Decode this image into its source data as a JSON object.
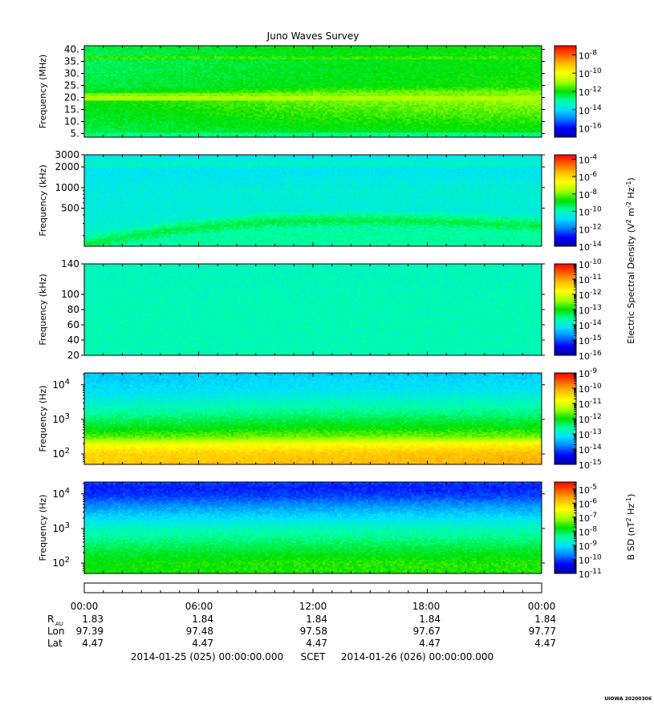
{
  "title": "Juno Waves Survey",
  "footer_tag": "UIOWA 20200306",
  "colorscale": [
    "#0000a0",
    "#0000ff",
    "#0080ff",
    "#00e0ff",
    "#00ffa0",
    "#00e000",
    "#a0ff00",
    "#ffff00",
    "#ffc000",
    "#ff6000",
    "#ff0000"
  ],
  "chart_data": [
    {
      "type": "heatmap",
      "name": "panel-hfr-high",
      "ylabel": "Frequency (MHz)",
      "yscale": "linear",
      "ylim": [
        3.5,
        41.5
      ],
      "yticks": [
        {
          "v": 40,
          "l": "40."
        },
        {
          "v": 35,
          "l": "35."
        },
        {
          "v": 30,
          "l": "30."
        },
        {
          "v": 25,
          "l": "25."
        },
        {
          "v": 20,
          "l": "20."
        },
        {
          "v": 15,
          "l": "15."
        },
        {
          "v": 10,
          "l": "10."
        },
        {
          "v": 5,
          "l": "5."
        }
      ],
      "cbar": {
        "exp_min": -17,
        "exp_max": -7,
        "ticks": [
          -8,
          -10,
          -12,
          -14,
          -16
        ],
        "unit_label": "",
        "minor": false
      },
      "rows": [
        {
          "f": 0.0,
          "c": [
            0.46,
            0.48,
            0.5
          ]
        },
        {
          "f": 0.1,
          "c": [
            0.46,
            0.49,
            0.5
          ]
        },
        {
          "f": 0.45,
          "c": [
            0.5,
            0.58,
            0.62
          ]
        },
        {
          "f": 0.5,
          "c": [
            0.48,
            0.55,
            0.58
          ]
        },
        {
          "f": 0.55,
          "c": [
            0.46,
            0.49,
            0.51
          ]
        },
        {
          "f": 0.82,
          "c": [
            0.44,
            0.48,
            0.5
          ]
        },
        {
          "f": 0.9,
          "c": [
            0.45,
            0.49,
            0.51
          ]
        },
        {
          "f": 1.0,
          "c": [
            0.46,
            0.49,
            0.5
          ]
        }
      ],
      "bands": [
        {
          "f0": 0.0,
          "f1": 0.045,
          "v": 0.42
        },
        {
          "f0": 0.405,
          "f1": 0.455,
          "v": 0.62
        },
        {
          "f0": 0.455,
          "f1": 0.49,
          "v": 0.58
        },
        {
          "f0": 0.855,
          "f1": 0.885,
          "v": 0.53
        }
      ]
    },
    {
      "type": "heatmap",
      "name": "panel-hfr-low",
      "ylabel": "Frequency (kHz)",
      "yscale": "log",
      "ylim": [
        140,
        3000
      ],
      "yticks": [
        {
          "v": 3000,
          "l": "3000"
        },
        {
          "v": 2000,
          "l": "2000"
        },
        {
          "v": 1000,
          "l": "1000"
        },
        {
          "v": 500,
          "l": "500"
        }
      ],
      "cbar": {
        "exp_min": -14,
        "exp_max": -3.5,
        "ticks": [
          -4,
          -6,
          -8,
          -10,
          -12,
          -14
        ],
        "unit_label": "",
        "minor": false
      },
      "rows": [
        {
          "f": 0.0,
          "c": [
            0.38,
            0.38,
            0.38
          ]
        },
        {
          "f": 0.08,
          "c": [
            0.36,
            0.36,
            0.36
          ]
        },
        {
          "f": 0.4,
          "c": [
            0.34,
            0.34,
            0.34
          ]
        },
        {
          "f": 0.6,
          "c": [
            0.33,
            0.35,
            0.35
          ]
        },
        {
          "f": 0.85,
          "c": [
            0.31,
            0.31,
            0.31
          ]
        },
        {
          "f": 0.9,
          "c": [
            0.38,
            0.38,
            0.38
          ]
        },
        {
          "f": 0.95,
          "c": [
            0.32,
            0.32,
            0.32
          ]
        },
        {
          "f": 1.0,
          "c": [
            0.34,
            0.34,
            0.34
          ]
        }
      ],
      "arc": {
        "v": 0.46,
        "f_center": [
          0.02,
          0.18,
          0.26,
          0.28,
          0.26,
          0.22
        ],
        "width": 0.1
      }
    },
    {
      "type": "heatmap",
      "name": "panel-lfr-high",
      "ylabel": "Frequency (kHz)",
      "yscale": "linear",
      "ylim": [
        20,
        140
      ],
      "yticks": [
        {
          "v": 140,
          "l": "140"
        },
        {
          "v": 100,
          "l": "100"
        },
        {
          "v": 80,
          "l": "80"
        },
        {
          "v": 60,
          "l": "60"
        },
        {
          "v": 40,
          "l": "40"
        },
        {
          "v": 20,
          "l": "20"
        }
      ],
      "cbar": {
        "exp_min": -16,
        "exp_max": -10,
        "ticks": [
          -10,
          -11,
          -12,
          -13,
          -14,
          -15,
          -16
        ],
        "unit_label": "Electric Spectral Density (V^2 m^-2 Hz^-1)",
        "minor": true
      },
      "rows": [
        {
          "f": 0.0,
          "c": [
            0.38,
            0.38,
            0.38
          ]
        },
        {
          "f": 0.5,
          "c": [
            0.38,
            0.38,
            0.38
          ]
        },
        {
          "f": 1.0,
          "c": [
            0.37,
            0.37,
            0.37
          ]
        }
      ]
    },
    {
      "type": "heatmap",
      "name": "panel-lfr-low-e",
      "ylabel": "Frequency (Hz)",
      "yscale": "log",
      "ylim": [
        50,
        22000
      ],
      "yticks": [
        {
          "v": 10000,
          "l": "10^4"
        },
        {
          "v": 1000,
          "l": "10^3"
        },
        {
          "v": 100,
          "l": "10^2"
        }
      ],
      "cbar": {
        "exp_min": -15,
        "exp_max": -9,
        "ticks": [
          -9,
          -10,
          -11,
          -12,
          -13,
          -14,
          -15
        ],
        "unit_label": "",
        "minor": true
      },
      "rows": [
        {
          "f": 0.0,
          "c": [
            0.78,
            0.8,
            0.82
          ]
        },
        {
          "f": 0.12,
          "c": [
            0.76,
            0.78,
            0.8
          ]
        },
        {
          "f": 0.22,
          "c": [
            0.68,
            0.7,
            0.72
          ]
        },
        {
          "f": 0.3,
          "c": [
            0.55,
            0.57,
            0.57
          ]
        },
        {
          "f": 0.4,
          "c": [
            0.48,
            0.5,
            0.5
          ]
        },
        {
          "f": 0.6,
          "c": [
            0.38,
            0.4,
            0.4
          ]
        },
        {
          "f": 0.8,
          "c": [
            0.3,
            0.32,
            0.32
          ]
        },
        {
          "f": 1.0,
          "c": [
            0.27,
            0.28,
            0.28
          ]
        }
      ]
    },
    {
      "type": "heatmap",
      "name": "panel-lfr-low-b",
      "ylabel": "Frequency (Hz)",
      "yscale": "log",
      "ylim": [
        50,
        22000
      ],
      "yticks": [
        {
          "v": 10000,
          "l": "10^4"
        },
        {
          "v": 1000,
          "l": "10^3"
        },
        {
          "v": 100,
          "l": "10^2"
        }
      ],
      "cbar": {
        "exp_min": -11,
        "exp_max": -4.5,
        "ticks": [
          -5,
          -6,
          -7,
          -8,
          -9,
          -10,
          -11
        ],
        "unit_label": "B SD (nT^2 Hz^-1)",
        "minor": true
      },
      "rows": [
        {
          "f": 0.0,
          "c": [
            0.5,
            0.52,
            0.52
          ]
        },
        {
          "f": 0.12,
          "c": [
            0.5,
            0.52,
            0.52
          ]
        },
        {
          "f": 0.3,
          "c": [
            0.44,
            0.45,
            0.45
          ]
        },
        {
          "f": 0.5,
          "c": [
            0.36,
            0.37,
            0.37
          ]
        },
        {
          "f": 0.7,
          "c": [
            0.24,
            0.25,
            0.25
          ]
        },
        {
          "f": 0.85,
          "c": [
            0.14,
            0.15,
            0.15
          ]
        },
        {
          "f": 0.95,
          "c": [
            0.12,
            0.12,
            0.12
          ]
        },
        {
          "f": 1.0,
          "c": [
            0.16,
            0.16,
            0.16
          ]
        }
      ]
    }
  ],
  "time_axis": {
    "ticks": [
      "00:00",
      "06:00",
      "12:00",
      "18:00",
      "00:00"
    ],
    "ephemeris": [
      {
        "label": "R",
        "sub": "AU",
        "values": [
          "1.83",
          "1.84",
          "1.84",
          "1.84",
          "1.84"
        ]
      },
      {
        "label": "Lon",
        "sub": "",
        "values": [
          "97.39",
          "97.48",
          "97.58",
          "97.67",
          "97.77"
        ]
      },
      {
        "label": "Lat",
        "sub": "",
        "values": [
          "4.47",
          "4.47",
          "4.47",
          "4.47",
          "4.47"
        ]
      }
    ]
  },
  "footer": {
    "start": "2014-01-25 (025) 00:00:00.000",
    "scet": "SCET",
    "end": "2014-01-26 (026) 00:00:00.000"
  },
  "cbar_units": {
    "e_top": "Electric Spectral Density (V",
    "e_mid": " m",
    "e_end": " Hz",
    "e_close": ")",
    "b_top": "B SD (nT",
    "b_mid": " Hz",
    "b_close": ")"
  }
}
